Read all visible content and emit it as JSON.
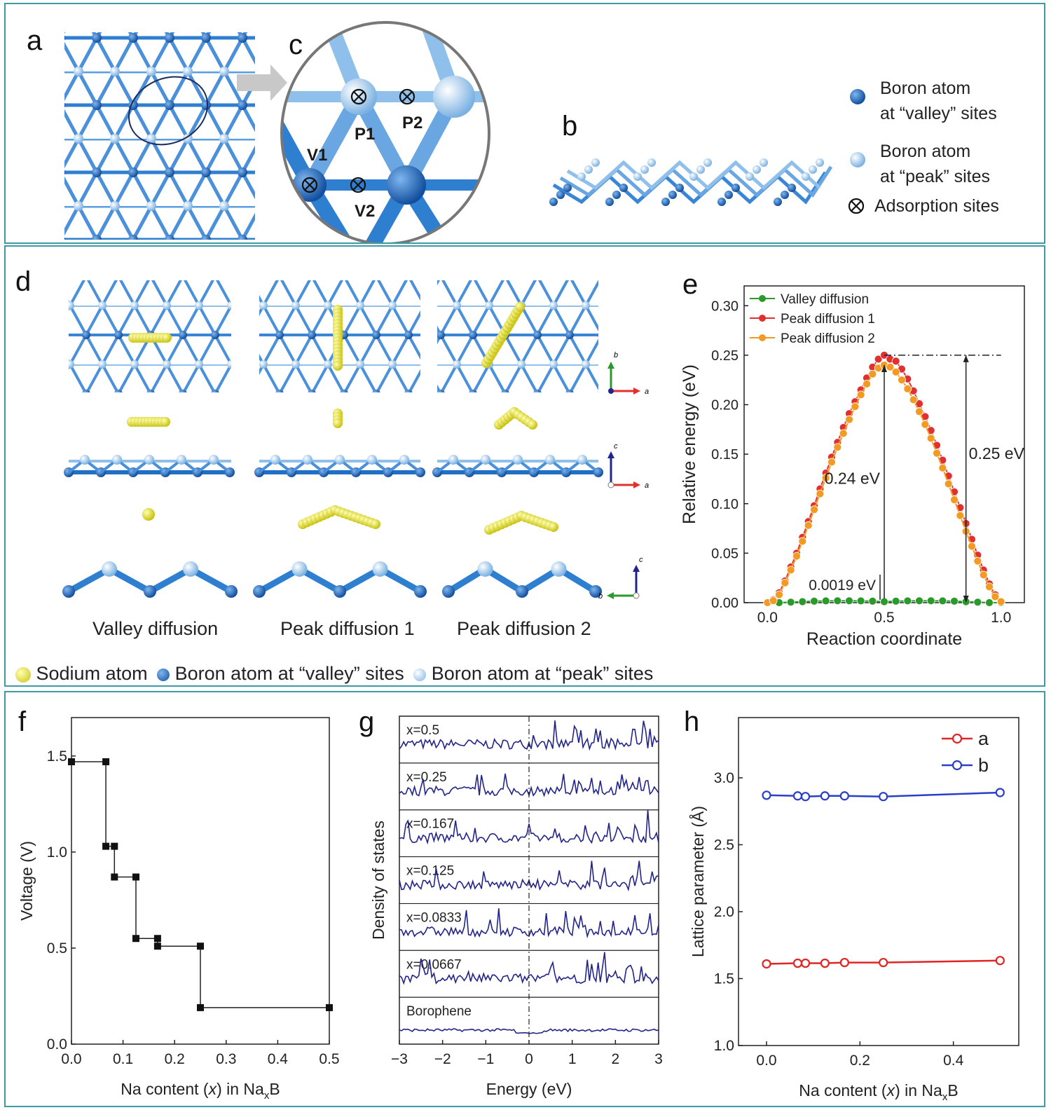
{
  "panel_labels": {
    "a": "a",
    "b": "b",
    "c": "c",
    "d": "d",
    "e": "e",
    "f": "f",
    "g": "g",
    "h": "h"
  },
  "top_legend": {
    "valley_line1": "Boron atom",
    "valley_line2": "at “valley” sites",
    "peak_line1": "Boron atom",
    "peak_line2": "at “peak” sites",
    "adsorption": "Adsorption sites"
  },
  "sites": {
    "p1": "P1",
    "p2": "P2",
    "v1": "V1",
    "v2": "V2"
  },
  "diffusion_captions": {
    "valley": "Valley diffusion",
    "peak1": "Peak diffusion 1",
    "peak2": "Peak diffusion 2"
  },
  "bottom_legend": {
    "sodium": "Sodium atom",
    "valley": "Boron atom at “valley” sites",
    "peak": "Boron atom at “peak” sites"
  },
  "axes_labels": {
    "a": "a",
    "b": "b",
    "c": "c"
  },
  "colors": {
    "frame": "#3e9aa4",
    "boron_valley": "#1f6fc4",
    "boron_peak": "#8fc0ec",
    "sodium": "#e8e21a",
    "red": "#e03030",
    "orange": "#f39a22",
    "green": "#2a9a2a",
    "navy": "#22248a",
    "blue": "#2a3ec8"
  },
  "chart_data": [
    {
      "id": "e",
      "type": "line",
      "xlabel": "Reaction  coordinate",
      "ylabel": "Relative energy (eV)",
      "xlim": [
        -0.1,
        1.1
      ],
      "ylim": [
        0,
        0.32
      ],
      "xticks": [
        "0.0",
        "0.5",
        "1.0"
      ],
      "yticks": [
        "0.00",
        "0.05",
        "0.10",
        "0.15",
        "0.20",
        "0.25",
        "0.30"
      ],
      "annotations": [
        "0.0019 eV",
        "0.24 eV",
        "0.25 eV"
      ],
      "legend_position": "top-left",
      "series": [
        {
          "name": "Valley diffusion",
          "color": "#2a9a2a",
          "x": [
            0,
            0.05,
            0.1,
            0.15,
            0.2,
            0.25,
            0.3,
            0.35,
            0.4,
            0.45,
            0.5,
            0.55,
            0.6,
            0.65,
            0.7,
            0.75,
            0.8,
            0.85,
            0.9,
            0.95,
            1.0
          ],
          "y": [
            0,
            0,
            0.0005,
            0.001,
            0.0015,
            0.0018,
            0.0019,
            0.0019,
            0.0018,
            0.0015,
            0.001,
            0.0015,
            0.0018,
            0.0019,
            0.0019,
            0.0018,
            0.0015,
            0.001,
            0.0005,
            0,
            0
          ]
        },
        {
          "name": "Peak diffusion 1",
          "color": "#e03030",
          "x": [
            0,
            0.025,
            0.05,
            0.075,
            0.1,
            0.125,
            0.15,
            0.175,
            0.2,
            0.225,
            0.25,
            0.275,
            0.3,
            0.325,
            0.35,
            0.375,
            0.4,
            0.425,
            0.45,
            0.475,
            0.5,
            0.525,
            0.55,
            0.575,
            0.6,
            0.625,
            0.65,
            0.675,
            0.7,
            0.725,
            0.75,
            0.775,
            0.8,
            0.825,
            0.85,
            0.875,
            0.9,
            0.925,
            0.95,
            0.975,
            1.0
          ],
          "y": [
            0,
            0.003,
            0.01,
            0.022,
            0.036,
            0.05,
            0.066,
            0.082,
            0.098,
            0.115,
            0.131,
            0.147,
            0.162,
            0.177,
            0.191,
            0.203,
            0.215,
            0.227,
            0.238,
            0.246,
            0.25,
            0.246,
            0.244,
            0.236,
            0.226,
            0.214,
            0.201,
            0.188,
            0.174,
            0.159,
            0.144,
            0.128,
            0.112,
            0.096,
            0.08,
            0.064,
            0.048,
            0.033,
            0.019,
            0.008,
            0.001
          ]
        },
        {
          "name": "Peak diffusion 2",
          "color": "#f39a22",
          "x": [
            0,
            0.025,
            0.05,
            0.075,
            0.1,
            0.125,
            0.15,
            0.175,
            0.2,
            0.225,
            0.25,
            0.275,
            0.3,
            0.325,
            0.35,
            0.375,
            0.4,
            0.425,
            0.45,
            0.475,
            0.5,
            0.525,
            0.55,
            0.575,
            0.6,
            0.625,
            0.65,
            0.675,
            0.7,
            0.725,
            0.75,
            0.775,
            0.8,
            0.825,
            0.85,
            0.875,
            0.9,
            0.925,
            0.95,
            0.975,
            1.0
          ],
          "y": [
            0,
            0.002,
            0.008,
            0.02,
            0.033,
            0.047,
            0.062,
            0.078,
            0.094,
            0.11,
            0.126,
            0.142,
            0.157,
            0.171,
            0.185,
            0.198,
            0.21,
            0.221,
            0.231,
            0.237,
            0.24,
            0.238,
            0.233,
            0.225,
            0.216,
            0.205,
            0.193,
            0.18,
            0.166,
            0.151,
            0.136,
            0.12,
            0.104,
            0.088,
            0.072,
            0.057,
            0.042,
            0.028,
            0.016,
            0.006,
            0.001
          ]
        }
      ]
    },
    {
      "id": "f",
      "type": "line",
      "xlabel": "Na content (x) in NaxB",
      "ylabel": "Voltage (V)",
      "xlim": [
        0,
        0.5
      ],
      "ylim": [
        0,
        1.7
      ],
      "xticks": [
        "0.0",
        "0.1",
        "0.2",
        "0.3",
        "0.4",
        "0.5"
      ],
      "yticks": [
        "0.0",
        "0.5",
        "1.0",
        "1.5"
      ],
      "series": [
        {
          "name": "",
          "color": "#111111",
          "x": [
            0,
            0.0667,
            0.0667,
            0.0833,
            0.0833,
            0.125,
            0.125,
            0.167,
            0.167,
            0.25,
            0.25,
            0.5
          ],
          "y": [
            1.47,
            1.47,
            1.03,
            1.03,
            0.87,
            0.87,
            0.55,
            0.55,
            0.51,
            0.51,
            0.19,
            0.19
          ]
        }
      ]
    },
    {
      "id": "g",
      "type": "line",
      "xlabel": "Energy (eV)",
      "ylabel": "Density of states",
      "xlim": [
        -3,
        3
      ],
      "xticks": [
        "−3",
        "−2",
        "−1",
        "0",
        "1",
        "2",
        "3"
      ],
      "series": [
        {
          "name": "x=0.5"
        },
        {
          "name": "x=0.25"
        },
        {
          "name": "x=0.167"
        },
        {
          "name": "x=0.125"
        },
        {
          "name": "x=0.0833"
        },
        {
          "name": "x=0.0667"
        },
        {
          "name": "Borophene"
        }
      ]
    },
    {
      "id": "h",
      "type": "line",
      "xlabel": "Na content (x) in NaxB",
      "ylabel": "Lattice parameter (Å)",
      "xlim": [
        -0.06,
        0.54
      ],
      "ylim": [
        1.0,
        3.45
      ],
      "xticks": [
        "0.0",
        "0.2",
        "0.4"
      ],
      "yticks": [
        "1.0",
        "1.5",
        "2.0",
        "2.5",
        "3.0"
      ],
      "legend_position": "top-right",
      "series": [
        {
          "name": "a",
          "color": "#e02525",
          "x": [
            0,
            0.0667,
            0.0833,
            0.125,
            0.167,
            0.25,
            0.5
          ],
          "y": [
            1.61,
            1.615,
            1.615,
            1.615,
            1.62,
            1.62,
            1.635
          ]
        },
        {
          "name": "b",
          "color": "#2a3ec8",
          "x": [
            0,
            0.0667,
            0.0833,
            0.125,
            0.167,
            0.25,
            0.5
          ],
          "y": [
            2.87,
            2.865,
            2.86,
            2.865,
            2.865,
            2.86,
            2.89
          ]
        }
      ]
    }
  ]
}
